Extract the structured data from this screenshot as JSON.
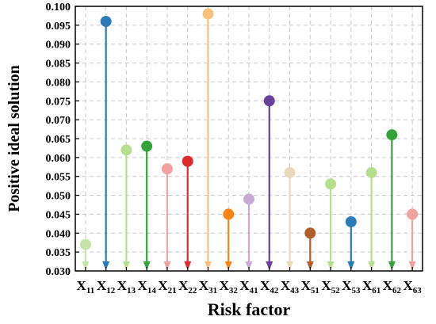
{
  "chart_data": {
    "type": "stem",
    "title": "",
    "xlabel": "Risk factor",
    "ylabel": "Positive ideal solution",
    "ylim": [
      0.03,
      0.1
    ],
    "yticks": [
      "0.030",
      "0.035",
      "0.040",
      "0.045",
      "0.050",
      "0.055",
      "0.060",
      "0.065",
      "0.070",
      "0.075",
      "0.080",
      "0.085",
      "0.090",
      "0.095",
      "0.100"
    ],
    "grid": true,
    "categories": [
      {
        "base": "X",
        "sub": "11"
      },
      {
        "base": "X",
        "sub": "12"
      },
      {
        "base": "X",
        "sub": "13"
      },
      {
        "base": "X",
        "sub": "14"
      },
      {
        "base": "X",
        "sub": "21"
      },
      {
        "base": "X",
        "sub": "22"
      },
      {
        "base": "X",
        "sub": "31"
      },
      {
        "base": "X",
        "sub": "32"
      },
      {
        "base": "X",
        "sub": "41"
      },
      {
        "base": "X",
        "sub": "42"
      },
      {
        "base": "X",
        "sub": "43"
      },
      {
        "base": "X",
        "sub": "51"
      },
      {
        "base": "X",
        "sub": "52"
      },
      {
        "base": "X",
        "sub": "53"
      },
      {
        "base": "X",
        "sub": "61"
      },
      {
        "base": "X",
        "sub": "62"
      },
      {
        "base": "X",
        "sub": "63"
      }
    ],
    "values": [
      0.037,
      0.096,
      0.062,
      0.063,
      0.057,
      0.059,
      0.098,
      0.045,
      0.049,
      0.075,
      0.056,
      0.04,
      0.053,
      0.043,
      0.056,
      0.066,
      0.045
    ],
    "colors": [
      "#c6e3a6",
      "#2b7bb8",
      "#b5de90",
      "#35a23a",
      "#f2a0a0",
      "#dd2a2a",
      "#fbc17c",
      "#fb8214",
      "#c8abd5",
      "#6a409d",
      "#ead8bb",
      "#b25d2a",
      "#b5de90",
      "#2b7bb8",
      "#b5de90",
      "#35a23a",
      "#f2a0a0"
    ]
  }
}
